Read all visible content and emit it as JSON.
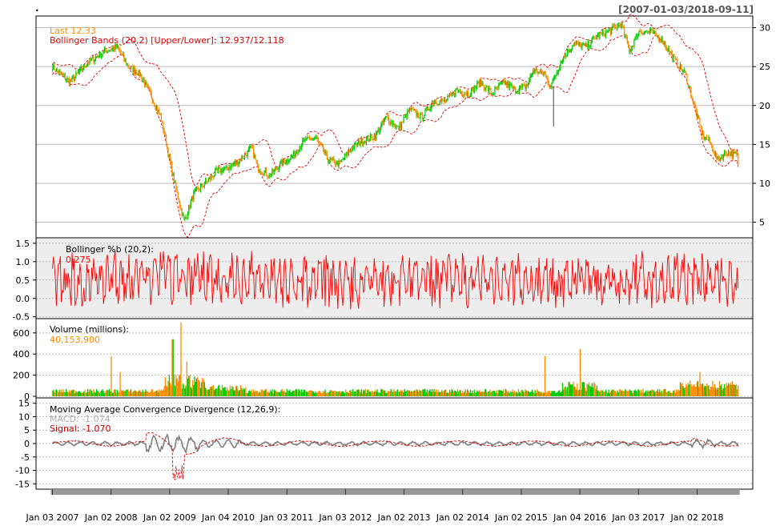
{
  "date_range": "[2007-01-03/2018-09-11]",
  "dot_label": ".",
  "colors": {
    "up": "#00c800",
    "down": "#ff8c00",
    "band": "#e00000",
    "pctb": "#ff0000",
    "macd": "#808080",
    "signal": "#d00000",
    "grid": "#bbbbbb",
    "panel_bg": "#ffffff",
    "pctb_bg": "#ededed"
  },
  "chart_data": [
    {
      "type": "candlestick",
      "title": "",
      "legend": [
        {
          "label": "Last 12.33",
          "color": "#ff8c00"
        },
        {
          "label": "Bollinger Bands (20,2) [Upper/Lower]: 12.937/12.118",
          "color": "#e00000"
        }
      ],
      "ylim": [
        3,
        31.5
      ],
      "yticks": [
        5,
        10,
        15,
        20,
        25,
        30
      ],
      "grid": true,
      "axis_side": "right",
      "close_path": [
        [
          2007.0,
          25.0
        ],
        [
          2007.3,
          23.0
        ],
        [
          2007.6,
          25.5
        ],
        [
          2007.9,
          27.0
        ],
        [
          2008.1,
          27.5
        ],
        [
          2008.3,
          25.0
        ],
        [
          2008.5,
          24.0
        ],
        [
          2008.7,
          21.0
        ],
        [
          2008.85,
          18.5
        ],
        [
          2009.0,
          13.0
        ],
        [
          2009.1,
          9.5
        ],
        [
          2009.25,
          5.0
        ],
        [
          2009.4,
          8.5
        ],
        [
          2009.6,
          10.0
        ],
        [
          2009.8,
          11.5
        ],
        [
          2010.0,
          12.0
        ],
        [
          2010.2,
          13.0
        ],
        [
          2010.4,
          14.5
        ],
        [
          2010.5,
          12.0
        ],
        [
          2010.7,
          11.0
        ],
        [
          2010.9,
          12.5
        ],
        [
          2011.1,
          13.5
        ],
        [
          2011.3,
          15.5
        ],
        [
          2011.5,
          15.8
        ],
        [
          2011.7,
          13.0
        ],
        [
          2011.9,
          12.5
        ],
        [
          2012.1,
          14.5
        ],
        [
          2012.3,
          15.5
        ],
        [
          2012.5,
          16.0
        ],
        [
          2012.7,
          18.5
        ],
        [
          2012.9,
          17.0
        ],
        [
          2013.1,
          19.5
        ],
        [
          2013.3,
          18.5
        ],
        [
          2013.5,
          20.5
        ],
        [
          2013.7,
          20.5
        ],
        [
          2013.9,
          22.0
        ],
        [
          2014.1,
          21.5
        ],
        [
          2014.3,
          23.0
        ],
        [
          2014.5,
          21.5
        ],
        [
          2014.7,
          23.0
        ],
        [
          2014.9,
          22.0
        ],
        [
          2015.1,
          22.5
        ],
        [
          2015.2,
          24.5
        ],
        [
          2015.4,
          24.0
        ],
        [
          2015.5,
          22.5
        ],
        [
          2015.7,
          26.0
        ],
        [
          2015.9,
          28.0
        ],
        [
          2016.1,
          27.5
        ],
        [
          2016.3,
          29.0
        ],
        [
          2016.5,
          29.5
        ],
        [
          2016.7,
          30.5
        ],
        [
          2016.85,
          27.0
        ],
        [
          2017.0,
          29.5
        ],
        [
          2017.2,
          29.5
        ],
        [
          2017.4,
          28.5
        ],
        [
          2017.6,
          26.0
        ],
        [
          2017.8,
          24.0
        ],
        [
          2017.95,
          20.0
        ],
        [
          2018.1,
          16.0
        ],
        [
          2018.2,
          15.5
        ],
        [
          2018.35,
          13.0
        ],
        [
          2018.5,
          14.0
        ],
        [
          2018.7,
          13.5
        ],
        [
          2018.8,
          12.5
        ],
        [
          2018.7,
          12.33
        ]
      ]
    },
    {
      "type": "line",
      "label": "Bollinger %b (20,2):",
      "last_value": "0.275",
      "ylim": [
        -0.5,
        1.5
      ],
      "yticks": [
        "-0.5",
        "0.0",
        "0.5",
        "1.0",
        "1.5"
      ],
      "grid": true
    },
    {
      "type": "bar",
      "label": "Volume (millions):",
      "last_value": "40,153,900",
      "ylim": [
        0,
        700
      ],
      "yticks": [
        "0",
        "200",
        "400",
        "600"
      ],
      "spikes": [
        [
          2008.0,
          380
        ],
        [
          2008.15,
          230
        ],
        [
          2009.05,
          540
        ],
        [
          2009.2,
          700
        ],
        [
          2009.3,
          330
        ],
        [
          2015.4,
          380
        ],
        [
          2016.0,
          450
        ],
        [
          2018.05,
          230
        ]
      ],
      "grid": true
    },
    {
      "type": "line",
      "label": "Moving Average Convergence Divergence (12,26,9):",
      "series": [
        {
          "name": "MACD: -1.074",
          "color": "#808080"
        },
        {
          "name": "Signal: -1.070",
          "color": "#d00000"
        }
      ],
      "ylim": [
        -17,
        17
      ],
      "yticks": [
        "-15",
        "-10",
        "-5",
        "0",
        "5",
        "10",
        "15"
      ],
      "grid": true
    }
  ],
  "x_axis": {
    "tick_labels": [
      "Jan 03 2007",
      "Jan 02 2008",
      "Jan 02 2009",
      "Jan 04 2010",
      "Jan 03 2011",
      "Jan 03 2012",
      "Jan 02 2013",
      "Jan 02 2014",
      "Jan 02 2015",
      "Jan 04 2016",
      "Jan 03 2017",
      "Jan 02 2018"
    ],
    "tick_years": [
      2007,
      2008,
      2009,
      2010,
      2011,
      2012,
      2013,
      2014,
      2015,
      2016,
      2017,
      2018
    ],
    "domain": [
      2006.72,
      2018.95
    ]
  }
}
